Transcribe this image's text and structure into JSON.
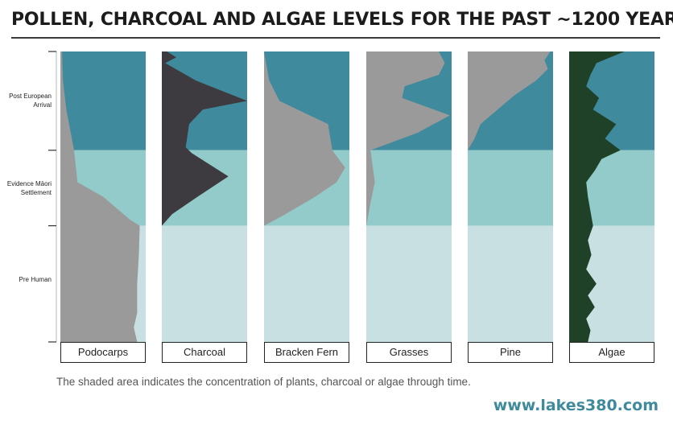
{
  "title": "POLLEN, CHARCOAL AND ALGAE LEVELS FOR THE PAST ~1200 YEARS",
  "caption": "The shaded area indicates the concentration of plants, charcoal or algae through time.",
  "website": "www.lakes380.com",
  "colors": {
    "post_european_zone": "#3f8a9c",
    "maori_zone": "#92cbc9",
    "pre_human_zone": "#c8e0e2",
    "podocarps": "#9a9a9b",
    "charcoal": "#3d3b3f",
    "bracken_fern": "#9a9a9b",
    "grasses": "#9a9a9b",
    "pine": "#9a9a9b",
    "algae": "#1e4128"
  },
  "chart_data": {
    "type": "area",
    "description_units": "relative concentration (0 = none, 1 = panel full width); depth = fraction from top (present) to bottom (~1200 years ago)",
    "zones": [
      {
        "label": "Post European Arrival",
        "start": 0.0,
        "end": 0.34
      },
      {
        "label": "Evidence Māori Settlement",
        "start": 0.34,
        "end": 0.6
      },
      {
        "label": "Pre Human",
        "start": 0.6,
        "end": 1.0
      }
    ],
    "series": [
      {
        "name": "Podocarps",
        "depth": [
          0.0,
          0.1,
          0.2,
          0.34,
          0.45,
          0.5,
          0.58,
          0.6,
          0.7,
          0.8,
          0.9,
          0.95,
          1.0
        ],
        "value": [
          0.02,
          0.03,
          0.07,
          0.16,
          0.2,
          0.5,
          0.82,
          0.93,
          0.92,
          0.9,
          0.9,
          0.86,
          0.9
        ]
      },
      {
        "name": "Charcoal",
        "depth": [
          0.0,
          0.02,
          0.04,
          0.1,
          0.17,
          0.2,
          0.25,
          0.33,
          0.35,
          0.43,
          0.5,
          0.56,
          0.6,
          1.0
        ],
        "value": [
          0.06,
          0.17,
          0.04,
          0.4,
          1.0,
          0.48,
          0.32,
          0.28,
          0.35,
          0.78,
          0.42,
          0.12,
          0.0,
          0.0
        ]
      },
      {
        "name": "Bracken Fern",
        "depth": [
          0.0,
          0.1,
          0.17,
          0.25,
          0.34,
          0.4,
          0.45,
          0.5,
          0.56,
          0.6,
          1.0
        ],
        "value": [
          0.0,
          0.06,
          0.18,
          0.75,
          0.8,
          0.95,
          0.85,
          0.6,
          0.25,
          0.0,
          0.0
        ],
        "notes": "shape approximated from screenshot"
      },
      {
        "name": "Grasses",
        "depth": [
          0.0,
          0.04,
          0.08,
          0.12,
          0.16,
          0.22,
          0.28,
          0.34,
          0.45,
          0.52,
          0.6,
          1.0
        ],
        "value": [
          0.85,
          0.92,
          0.85,
          0.45,
          0.42,
          0.98,
          0.6,
          0.05,
          0.1,
          0.05,
          0.0,
          0.0
        ]
      },
      {
        "name": "Pine",
        "depth": [
          0.0,
          0.03,
          0.06,
          0.1,
          0.15,
          0.2,
          0.25,
          0.3,
          0.34,
          0.36,
          0.6,
          1.0
        ],
        "value": [
          0.97,
          0.9,
          0.94,
          0.8,
          0.55,
          0.35,
          0.15,
          0.08,
          0.0,
          0.0,
          0.0,
          0.0
        ]
      },
      {
        "name": "Algae",
        "depth": [
          0.0,
          0.04,
          0.08,
          0.12,
          0.16,
          0.2,
          0.25,
          0.3,
          0.34,
          0.37,
          0.41,
          0.45,
          0.5,
          0.55,
          0.6,
          0.65,
          0.7,
          0.75,
          0.8,
          0.84,
          0.88,
          0.92,
          0.96,
          1.0
        ],
        "value": [
          0.65,
          0.32,
          0.25,
          0.2,
          0.35,
          0.28,
          0.55,
          0.42,
          0.6,
          0.38,
          0.3,
          0.2,
          0.22,
          0.25,
          0.28,
          0.22,
          0.26,
          0.2,
          0.32,
          0.22,
          0.3,
          0.2,
          0.25,
          0.22
        ],
        "notes": "shape approximated from screenshot"
      }
    ]
  }
}
